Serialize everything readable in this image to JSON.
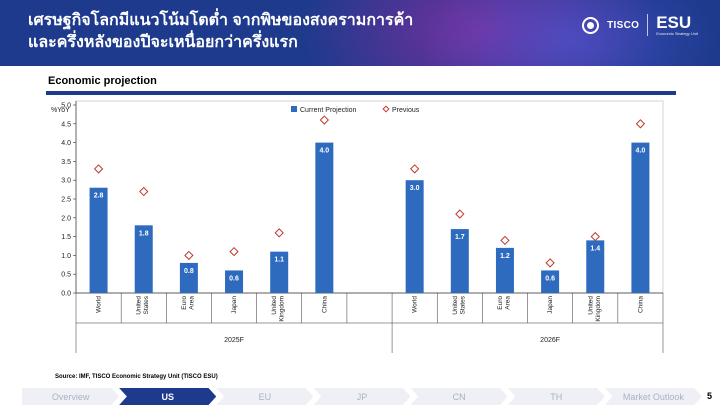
{
  "header": {
    "title_line1": "เศรษฐกิจโลกมีแนวโน้มโตต่ำ จากพิษของสงครามการค้า",
    "title_line2": "และครึ่งหลังของปีจะเหนื่อยกว่าครึ่งแรก",
    "logo_brand": "TISCO",
    "logo_unit": "ESU",
    "logo_tagline": "Economic Strategy Unit"
  },
  "section": {
    "title": "Economic projection"
  },
  "source": "Source: IMF, TISCO Economic Strategy Unit (TISCO ESU)",
  "nav": {
    "items": [
      "Overview",
      "US",
      "EU",
      "JP",
      "CN",
      "TH",
      "Market Outlook"
    ],
    "active_index": 1
  },
  "page_number": "5",
  "colors": {
    "header_bg": "#1d3a8c",
    "bar": "#2e6bbf",
    "previous_marker": "#c0392b",
    "nav_active": "#1d3a8c"
  },
  "chart_data": {
    "type": "bar",
    "unit_label": "%YoY",
    "ylim": [
      0,
      5.0
    ],
    "yticks": [
      "0.0",
      "0.5",
      "1.0",
      "1.5",
      "2.0",
      "2.5",
      "3.0",
      "3.5",
      "4.0",
      "4.5",
      "5.0"
    ],
    "legend": {
      "placement": "top-center",
      "bar_label": "Current Projection",
      "marker_label": "Previous"
    },
    "groups": [
      {
        "label": "2025F",
        "categories": [
          "World",
          "United States",
          "Euro Area",
          "Japan",
          "United Kingdom",
          "China"
        ],
        "current": [
          2.8,
          1.8,
          0.8,
          0.6,
          1.1,
          4.0
        ],
        "current_labels": [
          "2.8",
          "1.8",
          "0.8",
          "0.6",
          "1.1",
          "4.0"
        ],
        "previous": [
          3.3,
          2.7,
          1.0,
          1.1,
          1.6,
          4.6
        ]
      },
      {
        "label": "2026F",
        "categories": [
          "World",
          "United States",
          "Euro Area",
          "Japan",
          "United Kingdom",
          "China"
        ],
        "current": [
          3.0,
          1.7,
          1.2,
          0.6,
          1.4,
          4.0
        ],
        "current_labels": [
          "3.0",
          "1.7",
          "1.2",
          "0.6",
          "1.4",
          "4.0"
        ],
        "previous": [
          3.3,
          2.1,
          1.4,
          0.8,
          1.5,
          4.5
        ]
      }
    ]
  }
}
